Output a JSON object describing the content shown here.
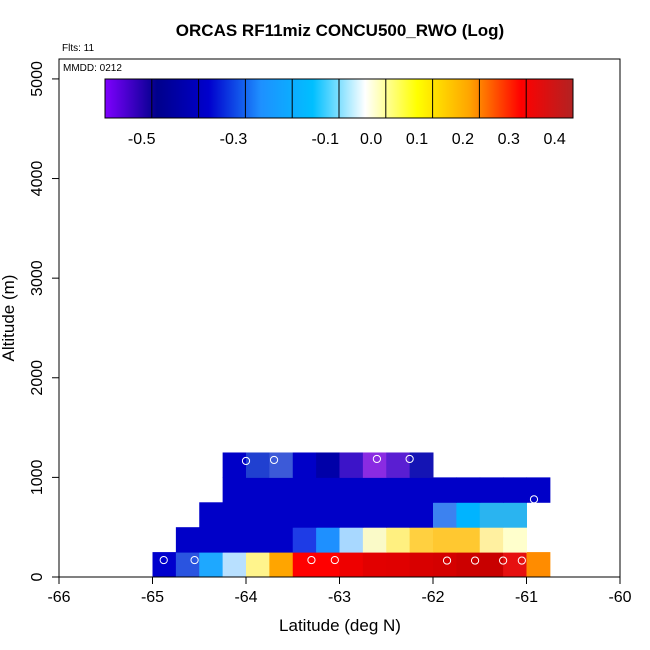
{
  "chart_data": {
    "type": "heatmap",
    "title": "ORCAS RF11miz CONCU500_RWO (Log)",
    "flights_label": "Flts: 11",
    "date_label": "MMDD: 0212",
    "xlabel": "Latitude (deg N)",
    "ylabel": "Altitude (m)",
    "xlim": [
      -66,
      -60
    ],
    "ylim": [
      0,
      5200
    ],
    "xticks": [
      "-66",
      "-65",
      "-64",
      "-63",
      "-62",
      "-61",
      "-60"
    ],
    "yticks": [
      "0",
      "1000",
      "2000",
      "3000",
      "4000",
      "5000"
    ],
    "grid": false,
    "colorbar": {
      "range": [
        -0.58,
        0.44
      ],
      "ticks": [
        "-0.5",
        "-0.3",
        "-0.1",
        "0.0",
        "0.1",
        "0.2",
        "0.3",
        "0.4"
      ],
      "colors": [
        "#7f00ff",
        "#00008b",
        "#0000cd",
        "#1e90ff",
        "#00bfff",
        "#ffffff",
        "#ffff00",
        "#ffa500",
        "#ff0000",
        "#b22222"
      ]
    },
    "cell_width_deg": 0.25,
    "cell_height_m": 250,
    "cells": [
      {
        "alt": 0,
        "lat_start": -65.0,
        "colors": [
          "#0000cd",
          "#2a54e0",
          "#1ea8ff",
          "#b8e0ff",
          "#fff48c",
          "#ffa500",
          "#ff0000",
          "#ff0000",
          "#ee0000",
          "#e20000",
          "#e00000",
          "#d80000",
          "#d40000",
          "#cc0000",
          "#c80000",
          "#e61010",
          "#ff8c00"
        ]
      },
      {
        "alt": 250,
        "lat_start": -64.75,
        "colors": [
          "#0000c8",
          "#0000c8",
          "#0000c8",
          "#0000c8",
          "#0000c8",
          "#1e3ce6",
          "#1e90ff",
          "#a8d8ff",
          "#fafac8",
          "#fff080",
          "#ffd040",
          "#ffc830",
          "#ffc830",
          "#fff0a0",
          "#ffffcc"
        ]
      },
      {
        "alt": 500,
        "lat_start": -64.5,
        "colors": [
          "#0000c8",
          "#0000c8",
          "#0000c8",
          "#0000c8",
          "#0000c8",
          "#0000c8",
          "#0000c8",
          "#0000c8",
          "#0000c8",
          "#0000c8",
          "#3c82f0",
          "#00b4ff",
          "#2ab4f0",
          "#2ab4f0"
        ]
      },
      {
        "alt": 750,
        "lat_start": -64.25,
        "colors": [
          "#0000c8",
          "#0000c8",
          "#0000c8",
          "#0000c8",
          "#0000c8",
          "#0000c8",
          "#0000c8",
          "#0000c8",
          "#0000c8",
          "#0000c8",
          "#0000c8",
          "#0000c8",
          "#0000c8",
          "#0000c8"
        ]
      },
      {
        "alt": 1000,
        "lat_start": -64.25,
        "colors": [
          "#0000c8",
          "#2040d0",
          "#3c5ad8",
          "#0000c8",
          "#0000a8",
          "#3c14c8",
          "#8a2be2",
          "#5a1ed2",
          "#1414b4"
        ]
      }
    ],
    "points": [
      [
        -64.88,
        170
      ],
      [
        -64.55,
        170
      ],
      [
        -63.3,
        170
      ],
      [
        -63.05,
        170
      ],
      [
        -61.85,
        165
      ],
      [
        -61.55,
        165
      ],
      [
        -61.25,
        165
      ],
      [
        -61.05,
        165
      ],
      [
        -60.92,
        780
      ],
      [
        -64.0,
        1165
      ],
      [
        -63.7,
        1175
      ],
      [
        -62.6,
        1185
      ],
      [
        -62.25,
        1185
      ]
    ]
  }
}
